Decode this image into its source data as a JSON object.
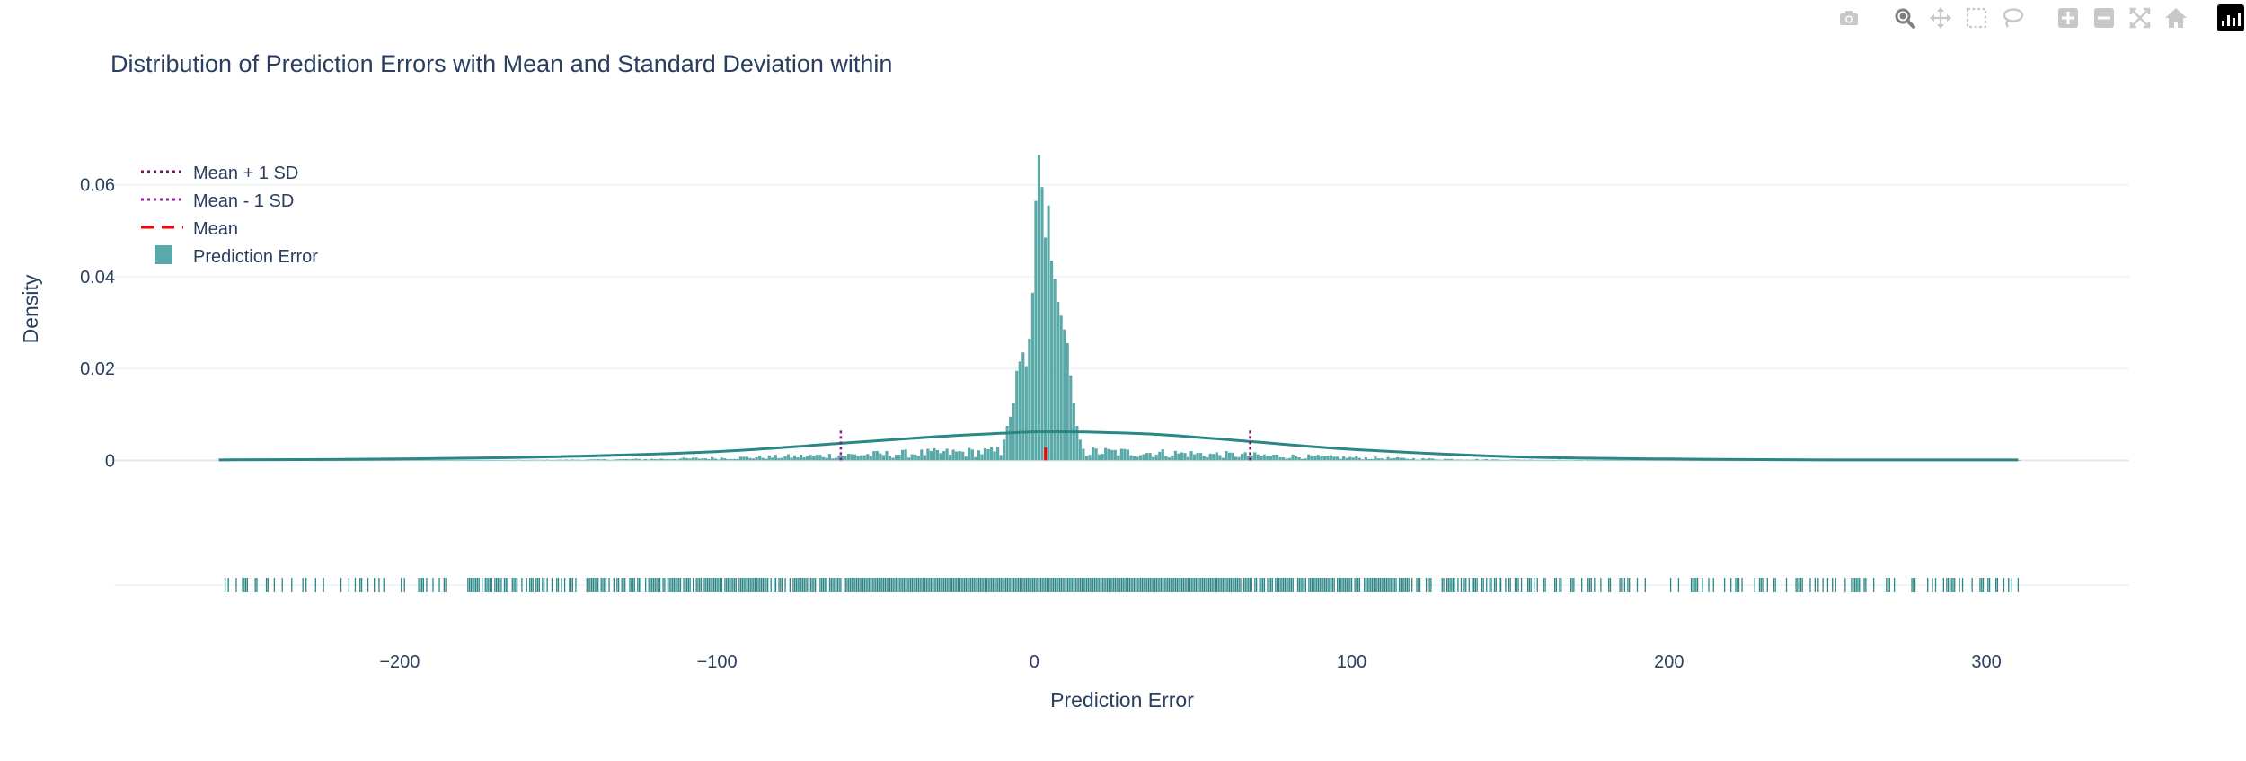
{
  "toolbar": {
    "buttons": [
      {
        "name": "camera-icon",
        "label": "Download plot as a png"
      },
      {
        "name": "zoom-icon",
        "label": "Zoom"
      },
      {
        "name": "pan-icon",
        "label": "Pan"
      },
      {
        "name": "box-select-icon",
        "label": "Box Select"
      },
      {
        "name": "lasso-select-icon",
        "label": "Lasso Select"
      },
      {
        "name": "zoom-in-icon",
        "label": "Zoom in"
      },
      {
        "name": "zoom-out-icon",
        "label": "Zoom out"
      },
      {
        "name": "autoscale-icon",
        "label": "Autoscale"
      },
      {
        "name": "reset-axes-icon",
        "label": "Reset axes"
      }
    ],
    "colors": {
      "inactive": "#c8c8c8",
      "active": "#7f7f7f"
    }
  },
  "chart_data": {
    "type": "bar",
    "title": "Distribution of Prediction Errors with Mean and Standard Deviation within",
    "xlabel": "Prediction Error",
    "ylabel": "Density",
    "xlim": [
      -290,
      345
    ],
    "ylim": [
      -0.0015,
      0.0705
    ],
    "x_ticks": [
      -200,
      -100,
      0,
      100,
      200,
      300
    ],
    "x_tick_labels": [
      "−200",
      "−100",
      "0",
      "100",
      "200",
      "300"
    ],
    "y_ticks": [
      0,
      0.02,
      0.04,
      0.06
    ],
    "y_tick_labels": [
      "0",
      "0.02",
      "0.04",
      "0.06"
    ],
    "grid": true,
    "legend_position": "top-left",
    "legend": [
      {
        "label": "Mean + 1 SD",
        "style": "dotted",
        "color": "#6b1a5a"
      },
      {
        "label": "Mean - 1 SD",
        "style": "dotted",
        "color": "#8b1a8b"
      },
      {
        "label": "Mean",
        "style": "dashed",
        "color": "#ff0000"
      },
      {
        "label": "Prediction Error",
        "style": "box",
        "color": "#5aa9a9"
      }
    ],
    "stats": {
      "mean": 3.5,
      "sd": 64.5,
      "mean_minus_sd": -61,
      "mean_plus_sd": 68
    },
    "histogram": {
      "bin_width": 1,
      "color": "#5aa9a9",
      "center_bins": [
        {
          "x": -10,
          "y": 0.0045
        },
        {
          "x": -9,
          "y": 0.0075
        },
        {
          "x": -8,
          "y": 0.0095
        },
        {
          "x": -7,
          "y": 0.0125
        },
        {
          "x": -6,
          "y": 0.0195
        },
        {
          "x": -5,
          "y": 0.0215
        },
        {
          "x": -4,
          "y": 0.0235
        },
        {
          "x": -3,
          "y": 0.0205
        },
        {
          "x": -2,
          "y": 0.0265
        },
        {
          "x": -1,
          "y": 0.0365
        },
        {
          "x": 0,
          "y": 0.0565
        },
        {
          "x": 1,
          "y": 0.0665
        },
        {
          "x": 2,
          "y": 0.0595
        },
        {
          "x": 3,
          "y": 0.0485
        },
        {
          "x": 4,
          "y": 0.0555
        },
        {
          "x": 5,
          "y": 0.0435
        },
        {
          "x": 6,
          "y": 0.0395
        },
        {
          "x": 7,
          "y": 0.0345
        },
        {
          "x": 8,
          "y": 0.0315
        },
        {
          "x": 9,
          "y": 0.0285
        },
        {
          "x": 10,
          "y": 0.0255
        },
        {
          "x": 11,
          "y": 0.0185
        },
        {
          "x": 12,
          "y": 0.0125
        },
        {
          "x": 13,
          "y": 0.0075
        },
        {
          "x": 14,
          "y": 0.0045
        },
        {
          "x": 15,
          "y": 0.0025
        }
      ],
      "background_range": [
        -257,
        310
      ]
    },
    "kde": {
      "color": "#2a8785",
      "x": [
        -257,
        -200,
        -150,
        -100,
        -61,
        -30,
        -10,
        0,
        10,
        20,
        40,
        68,
        100,
        150,
        200,
        250,
        310
      ],
      "y": [
        0.0001,
        0.0003,
        0.0008,
        0.0019,
        0.0037,
        0.0052,
        0.0059,
        0.0062,
        0.0062,
        0.0061,
        0.0056,
        0.0041,
        0.0024,
        0.0008,
        0.0003,
        0.0001,
        0.0001
      ]
    },
    "rug": {
      "color": "#2a8785",
      "range": [
        -257,
        310
      ]
    }
  }
}
